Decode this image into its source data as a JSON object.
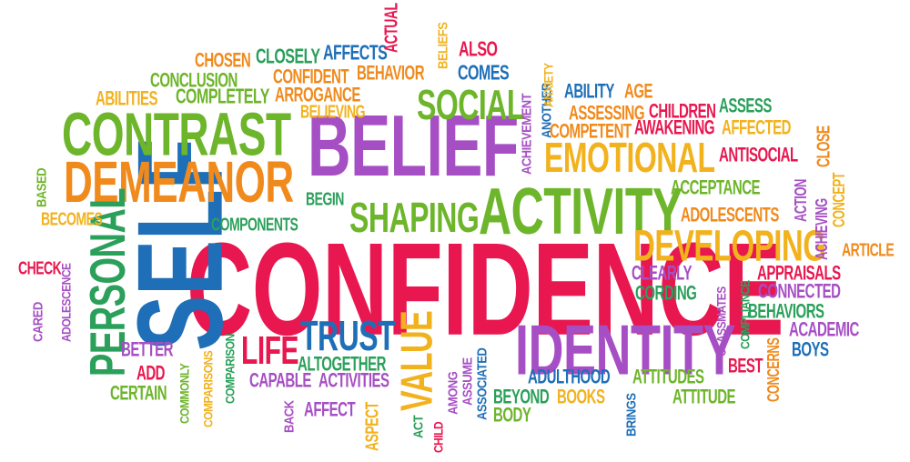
{
  "words": [
    {
      "id": "confidence",
      "text": "CONFIDENCE",
      "color": "#e8174f"
    },
    {
      "id": "belief",
      "text": "BELIEF",
      "color": "#a64fc4"
    },
    {
      "id": "self",
      "text": "SELF",
      "color": "#1e6fb8"
    },
    {
      "id": "contrast",
      "text": "CONTRAST",
      "color": "#6db52a"
    },
    {
      "id": "demeanor",
      "text": "DEMEANOR",
      "color": "#f08a1c"
    },
    {
      "id": "activity",
      "text": "ACTIVITY",
      "color": "#6db52a"
    },
    {
      "id": "identity",
      "text": "IDENTITY",
      "color": "#a64fc4"
    },
    {
      "id": "social",
      "text": "SOCIAL",
      "color": "#6db52a"
    },
    {
      "id": "shaping",
      "text": "SHAPING",
      "color": "#6db52a"
    },
    {
      "id": "emotional",
      "text": "EMOTIONAL",
      "color": "#f2b21e"
    },
    {
      "id": "developing",
      "text": "DEVELOPING",
      "color": "#f2b21e"
    },
    {
      "id": "personal",
      "text": "PERSONAL",
      "color": "#2aa05a"
    },
    {
      "id": "trust",
      "text": "TRUST",
      "color": "#1e6fb8"
    },
    {
      "id": "life",
      "text": "LIFE",
      "color": "#e8174f"
    },
    {
      "id": "value",
      "text": "VALUE",
      "color": "#f2b21e"
    },
    {
      "id": "chosen",
      "text": "CHOSEN",
      "color": "#f08a1c"
    },
    {
      "id": "closely",
      "text": "CLOSELY",
      "color": "#2aa05a"
    },
    {
      "id": "affects",
      "text": "AFFECTS",
      "color": "#1e6fb8"
    },
    {
      "id": "actual",
      "text": "ACTUAL",
      "color": "#e8174f"
    },
    {
      "id": "beliefs",
      "text": "BELIEFS",
      "color": "#f2b21e"
    },
    {
      "id": "also",
      "text": "ALSO",
      "color": "#e8174f"
    },
    {
      "id": "comes",
      "text": "COMES",
      "color": "#1e6fb8"
    },
    {
      "id": "conclusion",
      "text": "CONCLUSION",
      "color": "#6db52a"
    },
    {
      "id": "confident",
      "text": "CONFIDENT",
      "color": "#f08a1c"
    },
    {
      "id": "behavior",
      "text": "BEHAVIOR",
      "color": "#f08a1c"
    },
    {
      "id": "abilities",
      "text": "ABILITIES",
      "color": "#f2b21e"
    },
    {
      "id": "completely",
      "text": "COMPLETELY",
      "color": "#6db52a"
    },
    {
      "id": "arrogance",
      "text": "ARROGANCE",
      "color": "#f08a1c"
    },
    {
      "id": "believing",
      "text": "BELIEVING",
      "color": "#f2b21e"
    },
    {
      "id": "achievement",
      "text": "ACHIEVEMENT",
      "color": "#a64fc4"
    },
    {
      "id": "another",
      "text": "ANOTHER",
      "color": "#1e6fb8"
    },
    {
      "id": "anxiety",
      "text": "ANXIETY",
      "color": "#f2b21e"
    },
    {
      "id": "ability",
      "text": "ABILITY",
      "color": "#1e6fb8"
    },
    {
      "id": "age",
      "text": "AGE",
      "color": "#f08a1c"
    },
    {
      "id": "assessing",
      "text": "ASSESSING",
      "color": "#f08a1c"
    },
    {
      "id": "children",
      "text": "CHILDREN",
      "color": "#e8174f"
    },
    {
      "id": "assess",
      "text": "ASSESS",
      "color": "#2aa05a"
    },
    {
      "id": "competent",
      "text": "COMPETENT",
      "color": "#f08a1c"
    },
    {
      "id": "awakening",
      "text": "AWAKENING",
      "color": "#e8174f"
    },
    {
      "id": "affected",
      "text": "AFFECTED",
      "color": "#f2b21e"
    },
    {
      "id": "close",
      "text": "CLOSE",
      "color": "#f08a1c"
    },
    {
      "id": "antisocial",
      "text": "ANTISOCIAL",
      "color": "#e8174f"
    },
    {
      "id": "based",
      "text": "BASED",
      "color": "#6db52a"
    },
    {
      "id": "begin",
      "text": "BEGIN",
      "color": "#2aa05a"
    },
    {
      "id": "acceptance",
      "text": "ACCEPTANCE",
      "color": "#6db52a"
    },
    {
      "id": "action",
      "text": "ACTION",
      "color": "#a64fc4"
    },
    {
      "id": "achieving",
      "text": "ACHIEVING",
      "color": "#a64fc4"
    },
    {
      "id": "concept",
      "text": "CONCEPT",
      "color": "#f2b21e"
    },
    {
      "id": "becomes",
      "text": "BECOMES",
      "color": "#f2b21e"
    },
    {
      "id": "components",
      "text": "COMPONENTS",
      "color": "#2aa05a"
    },
    {
      "id": "adolescents",
      "text": "ADOLESCENTS",
      "color": "#f08a1c"
    },
    {
      "id": "article",
      "text": "ARTICLE",
      "color": "#f08a1c"
    },
    {
      "id": "check",
      "text": "CHECK",
      "color": "#e8174f"
    },
    {
      "id": "adolescence",
      "text": "ADOLESCENCE",
      "color": "#a64fc4"
    },
    {
      "id": "clearly",
      "text": "CLEARLY",
      "color": "#a64fc4"
    },
    {
      "id": "classmates",
      "text": "CLASSMATES",
      "color": "#a64fc4"
    },
    {
      "id": "compliance",
      "text": "COMPLIANCE",
      "color": "#2aa05a"
    },
    {
      "id": "appraisals",
      "text": "APPRAISALS",
      "color": "#e8174f"
    },
    {
      "id": "cording",
      "text": "CORDING",
      "color": "#2aa05a"
    },
    {
      "id": "connected",
      "text": "CONNECTED",
      "color": "#a64fc4"
    },
    {
      "id": "behaviors",
      "text": "BEHAVIORS",
      "color": "#2aa05a"
    },
    {
      "id": "cared",
      "text": "CARED",
      "color": "#a64fc4"
    },
    {
      "id": "academic",
      "text": "ACADEMIC",
      "color": "#a64fc4"
    },
    {
      "id": "boys",
      "text": "BOYS",
      "color": "#1e6fb8"
    },
    {
      "id": "comparisons",
      "text": "COMPARISONS",
      "color": "#f2b21e"
    },
    {
      "id": "comparison",
      "text": "COMPARISON",
      "color": "#2aa05a"
    },
    {
      "id": "commonly",
      "text": "COMMONLY",
      "color": "#6db52a"
    },
    {
      "id": "better",
      "text": "BETTER",
      "color": "#a64fc4"
    },
    {
      "id": "add",
      "text": "ADD",
      "color": "#e8174f"
    },
    {
      "id": "certain",
      "text": "CERTAIN",
      "color": "#6db52a"
    },
    {
      "id": "altogether",
      "text": "ALTOGETHER",
      "color": "#2aa05a"
    },
    {
      "id": "capable",
      "text": "CAPABLE",
      "color": "#a64fc4"
    },
    {
      "id": "activities",
      "text": "ACTIVITIES",
      "color": "#a64fc4"
    },
    {
      "id": "back",
      "text": "BACK",
      "color": "#a64fc4"
    },
    {
      "id": "affect",
      "text": "AFFECT",
      "color": "#a64fc4"
    },
    {
      "id": "aspect",
      "text": "ASPECT",
      "color": "#f2b21e"
    },
    {
      "id": "act",
      "text": "ACT",
      "color": "#2aa05a"
    },
    {
      "id": "child",
      "text": "CHILD",
      "color": "#e8174f"
    },
    {
      "id": "among",
      "text": "AMONG",
      "color": "#a64fc4"
    },
    {
      "id": "assume",
      "text": "ASSUME",
      "color": "#a64fc4"
    },
    {
      "id": "associated",
      "text": "ASSOCIATED",
      "color": "#1e6fb8"
    },
    {
      "id": "adulthood",
      "text": "ADULTHOOD",
      "color": "#1e6fb8"
    },
    {
      "id": "beyond",
      "text": "BEYOND",
      "color": "#2aa05a"
    },
    {
      "id": "books",
      "text": "BOOKS",
      "color": "#f2b21e"
    },
    {
      "id": "body",
      "text": "BODY",
      "color": "#6db52a"
    },
    {
      "id": "brings",
      "text": "BRINGS",
      "color": "#1e6fb8"
    },
    {
      "id": "attitudes",
      "text": "ATTITUDES",
      "color": "#6db52a"
    },
    {
      "id": "attitude",
      "text": "ATTITUDE",
      "color": "#6db52a"
    },
    {
      "id": "best",
      "text": "BEST",
      "color": "#e8174f"
    },
    {
      "id": "concerns",
      "text": "CONCERNS",
      "color": "#f08a1c"
    }
  ]
}
